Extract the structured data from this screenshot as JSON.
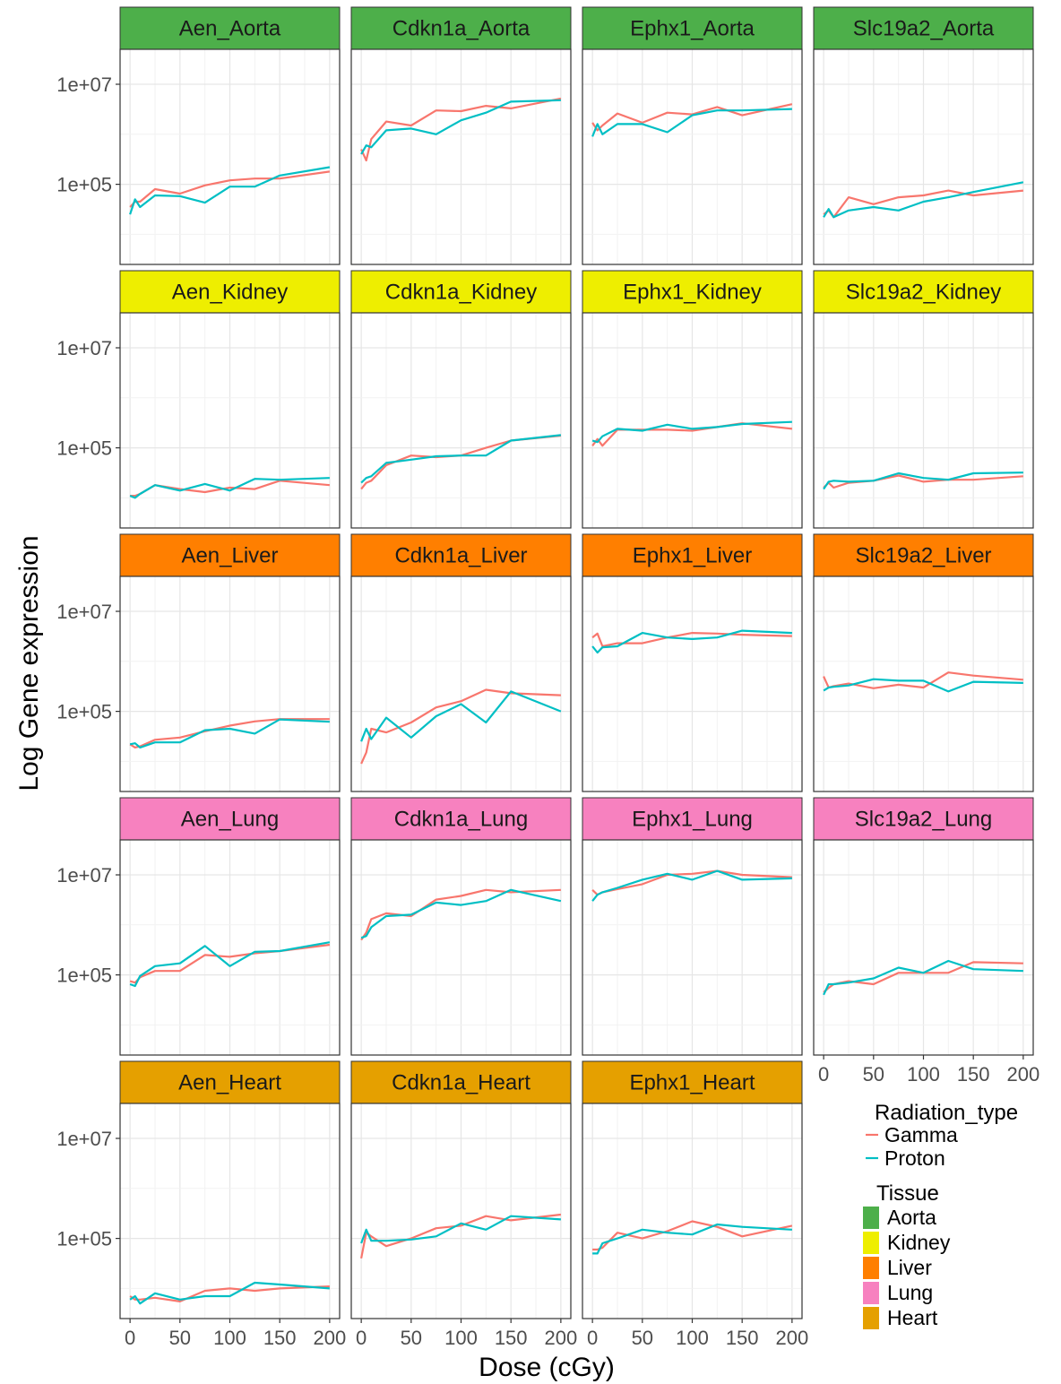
{
  "chart_data": {
    "type": "line",
    "title": "",
    "xlabel": "Dose (cGy)",
    "ylabel": "Log Gene expression",
    "yscale": "log10",
    "xlim": [
      -10,
      210
    ],
    "ylim": [
      2500,
      50000000
    ],
    "x_ticks": [
      0,
      50,
      100,
      150,
      200
    ],
    "x_tick_labels": [
      "0",
      "50",
      "100",
      "150",
      "200"
    ],
    "y_ticks": [
      100000,
      10000000
    ],
    "y_tick_labels": [
      "1e+05",
      "1e+07"
    ],
    "grid": true,
    "legend_position": "right",
    "legends": [
      {
        "title": "Radiation_type",
        "kind": "line",
        "items": [
          {
            "label": "Gamma",
            "color": "#F8766D"
          },
          {
            "label": "Proton",
            "color": "#00BFC4"
          }
        ]
      },
      {
        "title": "Tissue",
        "kind": "fill",
        "items": [
          {
            "label": "Aorta",
            "color": "#4DAF4A"
          },
          {
            "label": "Kidney",
            "color": "#EEEE00"
          },
          {
            "label": "Liver",
            "color": "#FF7F00"
          },
          {
            "label": "Lung",
            "color": "#F781BF"
          },
          {
            "label": "Heart",
            "color": "#E5A000"
          }
        ]
      }
    ],
    "x": [
      0,
      5,
      10,
      25,
      50,
      75,
      100,
      125,
      150,
      200
    ],
    "panels": [
      {
        "title": "Aen_Aorta",
        "tissue": "Aorta",
        "gamma": [
          35000,
          45000,
          45000,
          80000,
          65000,
          95000,
          120000,
          130000,
          130000,
          180000
        ],
        "proton": [
          25000,
          50000,
          35000,
          60000,
          58000,
          43000,
          90000,
          90000,
          150000,
          220000
        ]
      },
      {
        "title": "Cdkn1a_Aorta",
        "tissue": "Aorta",
        "gamma": [
          500000,
          300000,
          800000,
          1800000,
          1500000,
          3000000,
          2900000,
          3700000,
          3300000,
          5200000
        ],
        "proton": [
          400000,
          600000,
          550000,
          1200000,
          1300000,
          1000000,
          1900000,
          2700000,
          4500000,
          4800000
        ]
      },
      {
        "title": "Ephx1_Aorta",
        "tissue": "Aorta",
        "gamma": [
          1700000,
          1200000,
          1500000,
          2600000,
          1700000,
          2700000,
          2500000,
          3500000,
          2400000,
          4000000
        ],
        "proton": [
          900000,
          1600000,
          1000000,
          1600000,
          1600000,
          1100000,
          2400000,
          3000000,
          3000000,
          3200000
        ]
      },
      {
        "title": "Slc19a2_Aorta",
        "tissue": "Aorta",
        "gamma": [
          25000,
          30000,
          22000,
          55000,
          40000,
          55000,
          60000,
          75000,
          60000,
          75000
        ],
        "proton": [
          22000,
          32000,
          22000,
          30000,
          35000,
          30000,
          45000,
          55000,
          70000,
          110000
        ]
      },
      {
        "title": "Aen_Kidney",
        "tissue": "Kidney",
        "gamma": [
          11000,
          11000,
          12000,
          18000,
          15000,
          13000,
          16000,
          15000,
          22000,
          18000
        ],
        "proton": [
          11000,
          10000,
          12000,
          18000,
          14000,
          19000,
          14000,
          24000,
          23000,
          25000
        ]
      },
      {
        "title": "Cdkn1a_Kidney",
        "tissue": "Kidney",
        "gamma": [
          15000,
          20000,
          22000,
          45000,
          70000,
          65000,
          70000,
          100000,
          140000,
          175000
        ],
        "proton": [
          20000,
          25000,
          27000,
          50000,
          58000,
          68000,
          70000,
          70000,
          140000,
          180000
        ]
      },
      {
        "title": "Ephx1_Kidney",
        "tissue": "Kidney",
        "gamma": [
          110000,
          150000,
          110000,
          230000,
          230000,
          230000,
          220000,
          260000,
          310000,
          240000
        ],
        "proton": [
          140000,
          130000,
          170000,
          240000,
          220000,
          290000,
          240000,
          260000,
          300000,
          330000
        ]
      },
      {
        "title": "Slc19a2_Kidney",
        "tissue": "Kidney",
        "gamma": [
          16000,
          20000,
          16000,
          20000,
          22000,
          28000,
          21000,
          23000,
          23000,
          27000
        ],
        "proton": [
          15000,
          21000,
          22000,
          21000,
          22000,
          31000,
          25000,
          23000,
          31000,
          32000
        ]
      },
      {
        "title": "Aen_Liver",
        "tissue": "Liver",
        "gamma": [
          22000,
          19000,
          20000,
          27000,
          30000,
          40000,
          52000,
          63000,
          70000,
          70000
        ],
        "proton": [
          22000,
          23000,
          19000,
          24000,
          24000,
          42000,
          45000,
          36000,
          69000,
          62000
        ]
      },
      {
        "title": "Cdkn1a_Liver",
        "tissue": "Liver",
        "gamma": [
          9000,
          15000,
          45000,
          38000,
          60000,
          120000,
          160000,
          270000,
          230000,
          210000
        ],
        "proton": [
          25000,
          45000,
          28000,
          75000,
          30000,
          80000,
          140000,
          60000,
          250000,
          100000
        ]
      },
      {
        "title": "Ephx1_Liver",
        "tissue": "Liver",
        "gamma": [
          3000000,
          3600000,
          2000000,
          2300000,
          2300000,
          3000000,
          3700000,
          3600000,
          3400000,
          3200000
        ],
        "proton": [
          2000000,
          1500000,
          1900000,
          2000000,
          3700000,
          3000000,
          2800000,
          3000000,
          4100000,
          3700000
        ]
      },
      {
        "title": "Slc19a2_Liver",
        "tissue": "Liver",
        "gamma": [
          500000,
          300000,
          320000,
          360000,
          290000,
          340000,
          300000,
          600000,
          520000,
          430000
        ],
        "proton": [
          260000,
          300000,
          310000,
          330000,
          440000,
          410000,
          410000,
          250000,
          390000,
          370000
        ]
      },
      {
        "title": "Aen_Lung",
        "tissue": "Lung",
        "gamma": [
          75000,
          70000,
          90000,
          120000,
          120000,
          250000,
          230000,
          270000,
          300000,
          400000
        ],
        "proton": [
          65000,
          60000,
          95000,
          150000,
          170000,
          380000,
          150000,
          290000,
          300000,
          450000
        ]
      },
      {
        "title": "Cdkn1a_Lung",
        "tissue": "Lung",
        "gamma": [
          500000,
          700000,
          1300000,
          1700000,
          1500000,
          3200000,
          3800000,
          5000000,
          4500000,
          5000000
        ],
        "proton": [
          550000,
          600000,
          900000,
          1500000,
          1600000,
          2800000,
          2500000,
          3000000,
          5000000,
          3000000
        ]
      },
      {
        "title": "Ephx1_Lung",
        "tissue": "Lung",
        "gamma": [
          5000000,
          4000000,
          4500000,
          5200000,
          6500000,
          10000000,
          10500000,
          12000000,
          10000000,
          9000000
        ],
        "proton": [
          3000000,
          4000000,
          4500000,
          5500000,
          8000000,
          10500000,
          8000000,
          12000000,
          8000000,
          8500000
        ]
      },
      {
        "title": "Slc19a2_Lung",
        "tissue": "Lung",
        "gamma": [
          45000,
          55000,
          65000,
          75000,
          65000,
          110000,
          110000,
          110000,
          180000,
          170000
        ],
        "proton": [
          40000,
          65000,
          65000,
          70000,
          85000,
          140000,
          110000,
          190000,
          130000,
          120000
        ]
      },
      {
        "title": "Aen_Heart",
        "tissue": "Heart",
        "gamma": [
          7000,
          6000,
          6000,
          6500,
          5500,
          9000,
          10000,
          9000,
          10000,
          11000
        ],
        "proton": [
          6000,
          7000,
          5000,
          8000,
          6000,
          7000,
          7000,
          13000,
          12000,
          10000
        ]
      },
      {
        "title": "Cdkn1a_Heart",
        "tissue": "Heart",
        "gamma": [
          40000,
          130000,
          110000,
          70000,
          100000,
          160000,
          180000,
          280000,
          230000,
          300000
        ],
        "proton": [
          80000,
          150000,
          90000,
          90000,
          95000,
          110000,
          200000,
          150000,
          280000,
          240000
        ]
      },
      {
        "title": "Ephx1_Heart",
        "tissue": "Heart",
        "gamma": [
          60000,
          60000,
          65000,
          130000,
          100000,
          140000,
          220000,
          170000,
          110000,
          180000
        ],
        "proton": [
          50000,
          50000,
          80000,
          100000,
          150000,
          130000,
          120000,
          190000,
          170000,
          150000
        ]
      }
    ]
  }
}
